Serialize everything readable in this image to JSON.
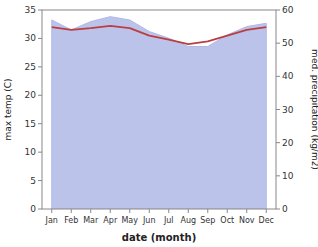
{
  "chart_data": {
    "type": "line",
    "xlabel": "date (month)",
    "ylabel": "max temp (C)",
    "y2label": "med. precipitation (kg/m2)",
    "categories": [
      "Jan",
      "Feb",
      "Mar",
      "Apr",
      "May",
      "Jun",
      "Jul",
      "Aug",
      "Sep",
      "Oct",
      "Nov",
      "Dec"
    ],
    "series": [
      {
        "type": "area",
        "axis": "y2",
        "color": "#b0b8e8",
        "values": [
          57.0,
          54.0,
          56.5,
          58.0,
          57.0,
          53.5,
          51.5,
          49.0,
          49.0,
          52.5,
          55.0,
          56.0
        ]
      },
      {
        "type": "line",
        "color": "#b94040",
        "values": [
          32.0,
          31.5,
          31.8,
          32.2,
          31.8,
          30.5,
          29.8,
          29.0,
          29.5,
          30.5,
          31.5,
          32.0
        ]
      }
    ],
    "ylim": [
      0,
      35
    ],
    "yticks": [
      0,
      5,
      10,
      15,
      20,
      25,
      30,
      35
    ],
    "y2lim": [
      0,
      60
    ],
    "y2ticks": [
      0,
      10,
      20,
      30,
      40,
      50,
      60
    ]
  }
}
